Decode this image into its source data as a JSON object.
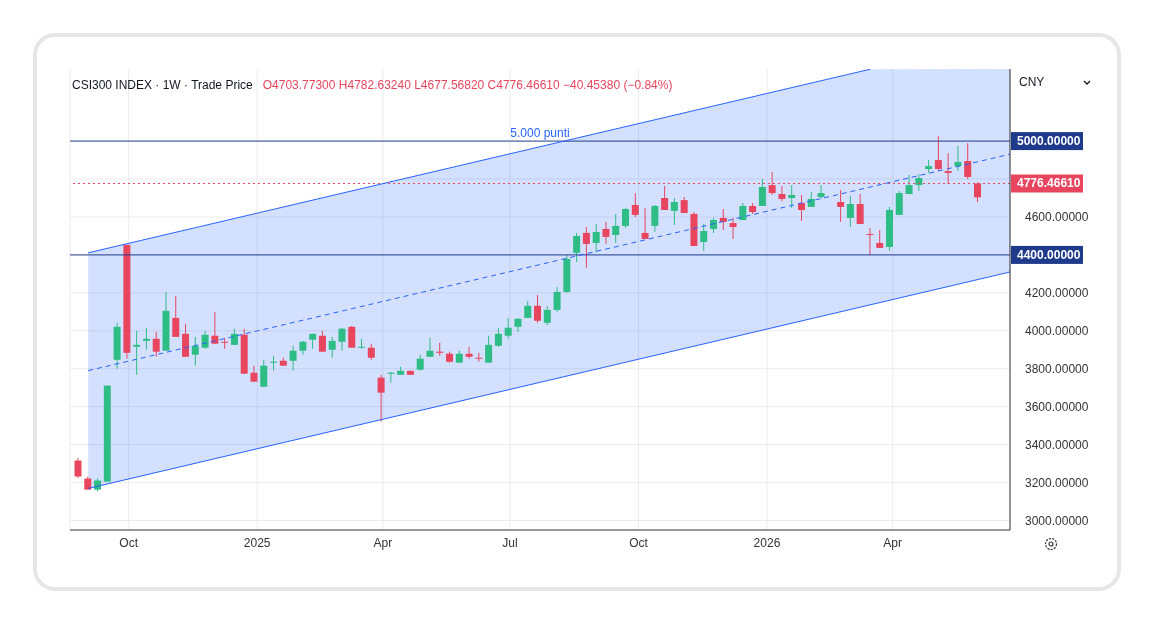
{
  "chart_data": {
    "type": "candlestick",
    "title": "CSI300 INDEX · 1W · Trade Price",
    "subtitle": "O4703.77300 H4782.63240 L4677.56820 C4776.46610 −40.45380 (−0.84%)",
    "ylabel": "CNY",
    "x": [
      "2024-08-26",
      "2024-09-02",
      "2024-09-09",
      "2024-09-16",
      "2024-09-23",
      "2024-09-30",
      "2024-10-07",
      "2024-10-14",
      "2024-10-21",
      "2024-10-28",
      "2024-11-04",
      "2024-11-11",
      "2024-11-18",
      "2024-11-25",
      "2024-12-02",
      "2024-12-09",
      "2024-12-16",
      "2024-12-23",
      "2024-12-30",
      "2025-01-06",
      "2025-01-13",
      "2025-01-20",
      "2025-01-27",
      "2025-02-03",
      "2025-02-10",
      "2025-02-17",
      "2025-02-24",
      "2025-03-03",
      "2025-03-10",
      "2025-03-17",
      "2025-03-24",
      "2025-03-31",
      "2025-04-07",
      "2025-04-14",
      "2025-04-21",
      "2025-04-28",
      "2025-05-05",
      "2025-05-12",
      "2025-05-19",
      "2025-05-26",
      "2025-06-02",
      "2025-06-09",
      "2025-06-16",
      "2025-06-23",
      "2025-06-30",
      "2025-07-07",
      "2025-07-14",
      "2025-07-21",
      "2025-07-28",
      "2025-08-04",
      "2025-08-11",
      "2025-08-18",
      "2025-08-25",
      "2025-09-01",
      "2025-09-08",
      "2025-09-15",
      "2025-09-22",
      "2025-09-29",
      "2025-10-06",
      "2025-10-13",
      "2025-10-20",
      "2025-10-27",
      "2025-11-03",
      "2025-11-10",
      "2025-11-17",
      "2025-11-24",
      "2025-12-01",
      "2025-12-08",
      "2025-12-15",
      "2025-12-22",
      "2025-12-29",
      "2026-01-05",
      "2026-01-12",
      "2026-01-19",
      "2026-01-26",
      "2026-02-02",
      "2026-02-09",
      "2026-02-23",
      "2026-03-02",
      "2026-03-09",
      "2026-03-16",
      "2026-03-23",
      "2026-03-30",
      "2026-04-06",
      "2026-04-13",
      "2026-04-20",
      "2026-04-27",
      "2026-05-04",
      "2026-05-11",
      "2026-05-18",
      "2026-05-25",
      "2026-06-01"
    ],
    "ohlc": [
      [
        3316,
        3330,
        3225,
        3232
      ],
      [
        3221,
        3232,
        3163,
        3163
      ],
      [
        3163,
        3221,
        3153,
        3211
      ],
      [
        3205,
        3711,
        3205,
        3711
      ],
      [
        3847,
        4042,
        3800,
        4021
      ],
      [
        4453,
        4453,
        3853,
        3884
      ],
      [
        3916,
        4000,
        3768,
        3926
      ],
      [
        3947,
        4016,
        3900,
        3958
      ],
      [
        3958,
        3995,
        3863,
        3890
      ],
      [
        3895,
        4205,
        3895,
        4105
      ],
      [
        4068,
        4184,
        3968,
        3968
      ],
      [
        3984,
        4037,
        3863,
        3863
      ],
      [
        3874,
        3968,
        3816,
        3921
      ],
      [
        3911,
        4000,
        3905,
        3979
      ],
      [
        3974,
        4100,
        3932,
        3932
      ],
      [
        3942,
        3963,
        3905,
        3937
      ],
      [
        3926,
        4011,
        3926,
        3984
      ],
      [
        3979,
        4011,
        3774,
        3774
      ],
      [
        3779,
        3816,
        3732,
        3732
      ],
      [
        3705,
        3847,
        3705,
        3816
      ],
      [
        3832,
        3868,
        3790,
        3837
      ],
      [
        3842,
        3858,
        3816,
        3816
      ],
      [
        3842,
        3921,
        3790,
        3895
      ],
      [
        3895,
        3947,
        3874,
        3942
      ],
      [
        3953,
        3984,
        3905,
        3984
      ],
      [
        3974,
        4000,
        3890,
        3890
      ],
      [
        3900,
        3968,
        3858,
        3947
      ],
      [
        3942,
        4016,
        3895,
        4011
      ],
      [
        4021,
        4026,
        3911,
        3911
      ],
      [
        3911,
        3958,
        3905,
        3916
      ],
      [
        3911,
        3932,
        3847,
        3858
      ],
      [
        3753,
        3768,
        3521,
        3674
      ],
      [
        3774,
        3784,
        3726,
        3779
      ],
      [
        3768,
        3810,
        3768,
        3789
      ],
      [
        3789,
        3789,
        3768,
        3768
      ],
      [
        3795,
        3874,
        3789,
        3853
      ],
      [
        3863,
        3963,
        3863,
        3895
      ],
      [
        3890,
        3937,
        3868,
        3884
      ],
      [
        3879,
        3890,
        3832,
        3837
      ],
      [
        3832,
        3895,
        3832,
        3879
      ],
      [
        3879,
        3916,
        3853,
        3863
      ],
      [
        3858,
        3884,
        3837,
        3853
      ],
      [
        3832,
        3974,
        3832,
        3926
      ],
      [
        3921,
        4016,
        3916,
        3984
      ],
      [
        3974,
        4068,
        3958,
        4016
      ],
      [
        4021,
        4068,
        3995,
        4063
      ],
      [
        4068,
        4158,
        4068,
        4132
      ],
      [
        4132,
        4189,
        4042,
        4053
      ],
      [
        4042,
        4130,
        4030,
        4110
      ],
      [
        4110,
        4230,
        4100,
        4205
      ],
      [
        4205,
        4400,
        4200,
        4379
      ],
      [
        4411,
        4516,
        4363,
        4500
      ],
      [
        4516,
        4547,
        4332,
        4458
      ],
      [
        4463,
        4563,
        4416,
        4521
      ],
      [
        4537,
        4574,
        4458,
        4495
      ],
      [
        4505,
        4616,
        4463,
        4553
      ],
      [
        4553,
        4647,
        4542,
        4642
      ],
      [
        4663,
        4726,
        4600,
        4611
      ],
      [
        4516,
        4647,
        4484,
        4484
      ],
      [
        4553,
        4663,
        4521,
        4658
      ],
      [
        4700,
        4763,
        4637,
        4637
      ],
      [
        4632,
        4700,
        4558,
        4679
      ],
      [
        4689,
        4705,
        4621,
        4621
      ],
      [
        4616,
        4626,
        4447,
        4447
      ],
      [
        4468,
        4563,
        4421,
        4526
      ],
      [
        4537,
        4595,
        4516,
        4584
      ],
      [
        4595,
        4642,
        4532,
        4574
      ],
      [
        4568,
        4595,
        4484,
        4547
      ],
      [
        4584,
        4674,
        4584,
        4658
      ],
      [
        4658,
        4674,
        4616,
        4626
      ],
      [
        4658,
        4800,
        4658,
        4758
      ],
      [
        4768,
        4837,
        4716,
        4726
      ],
      [
        4721,
        4763,
        4684,
        4695
      ],
      [
        4700,
        4768,
        4647,
        4716
      ],
      [
        4674,
        4716,
        4579,
        4637
      ],
      [
        4653,
        4732,
        4653,
        4695
      ],
      [
        4705,
        4768,
        4695,
        4726
      ],
      [
        4679,
        4742,
        4574,
        4653
      ],
      [
        4595,
        4711,
        4547,
        4668
      ],
      [
        4668,
        4721,
        4563,
        4563
      ],
      [
        4510,
        4542,
        4400,
        4505
      ],
      [
        4463,
        4532,
        4437,
        4437
      ],
      [
        4442,
        4653,
        4421,
        4637
      ],
      [
        4611,
        4737,
        4611,
        4726
      ],
      [
        4721,
        4821,
        4721,
        4768
      ],
      [
        4768,
        4826,
        4737,
        4805
      ],
      [
        4853,
        4900,
        4832,
        4868
      ],
      [
        4900,
        5026,
        4842,
        4853
      ],
      [
        4842,
        4937,
        4774,
        4832
      ],
      [
        4868,
        4974,
        4842,
        4890
      ],
      [
        4895,
        4989,
        4800,
        4811
      ],
      [
        4776.4661,
        4782.6324,
        4677.5682,
        4703.773
      ]
    ],
    "colors": [
      "#e8455e",
      "#e8455e",
      "#2ebd85",
      "#2ebd85",
      "#2ebd85",
      "#e8455e",
      "#2ebd85",
      "#2ebd85",
      "#e8455e",
      "#2ebd85",
      "#e8455e",
      "#e8455e",
      "#2ebd85",
      "#2ebd85",
      "#e8455e",
      "#e8455e",
      "#2ebd85",
      "#e8455e",
      "#e8455e",
      "#2ebd85",
      "#2ebd85",
      "#e8455e",
      "#2ebd85",
      "#2ebd85",
      "#2ebd85",
      "#e8455e",
      "#2ebd85",
      "#2ebd85",
      "#e8455e",
      "#2ebd85",
      "#e8455e",
      "#e8455e",
      "#2ebd85",
      "#2ebd85",
      "#e8455e",
      "#2ebd85",
      "#2ebd85",
      "#e8455e",
      "#e8455e",
      "#2ebd85",
      "#e8455e",
      "#e8455e",
      "#2ebd85",
      "#2ebd85",
      "#2ebd85",
      "#2ebd85",
      "#2ebd85",
      "#e8455e",
      "#2ebd85",
      "#2ebd85",
      "#2ebd85",
      "#2ebd85",
      "#e8455e",
      "#2ebd85",
      "#e8455e",
      "#2ebd85",
      "#2ebd85",
      "#e8455e",
      "#e8455e",
      "#2ebd85",
      "#e8455e",
      "#2ebd85",
      "#e8455e",
      "#e8455e",
      "#2ebd85",
      "#2ebd85",
      "#e8455e",
      "#e8455e",
      "#2ebd85",
      "#e8455e",
      "#2ebd85",
      "#e8455e",
      "#e8455e",
      "#2ebd85",
      "#e8455e",
      "#2ebd85",
      "#2ebd85",
      "#e8455e",
      "#2ebd85",
      "#e8455e",
      "#e8455e",
      "#e8455e",
      "#2ebd85",
      "#2ebd85",
      "#2ebd85",
      "#2ebd85",
      "#2ebd85",
      "#e8455e",
      "#e8455e",
      "#2ebd85",
      "#e8455e",
      "#e8455e"
    ],
    "series": [
      {
        "type": "line",
        "x": [
          "2024-09-02",
          "2026-03-16"
        ],
        "values": [
          4411,
          5379
        ],
        "color": "#2962ff",
        "line_style": "solid"
      },
      {
        "type": "line",
        "x": [
          "2024-09-02",
          "2026-03-16",
          "2026-06-24"
        ],
        "values": [
          3790,
          4758,
          4931
        ],
        "lower": [
          3169,
          4137,
          4310
        ],
        "upper": [
          4411,
          5379,
          5380
        ],
        "color": "#2962ff",
        "line_style": "dashed"
      },
      {
        "type": "line",
        "x": [
          "2024-09-02",
          "2026-06-24"
        ],
        "values": [
          3169,
          4310
        ],
        "color": "#2962ff",
        "line_style": "solid"
      }
    ],
    "xlim": [
      "2024-08-20",
      "2026-06-24"
    ],
    "xticks": [
      {
        "value": "2024-10-01",
        "label": "Oct"
      },
      {
        "value": "2025-01-01",
        "label": "2025"
      },
      {
        "value": "2025-04-01",
        "label": "Apr"
      },
      {
        "value": "2025-07-01",
        "label": "Jul"
      },
      {
        "value": "2025-10-01",
        "label": "Oct"
      },
      {
        "value": "2026-01-01",
        "label": "2026"
      },
      {
        "value": "2026-04-01",
        "label": "Apr"
      }
    ],
    "ylim": [
      2950,
      5380
    ],
    "yticks": [
      {
        "value": 3000,
        "label": "3000.00000"
      },
      {
        "value": 3200,
        "label": "3200.00000"
      },
      {
        "value": 3400,
        "label": "3400.00000"
      },
      {
        "value": 3600,
        "label": "3600.00000"
      },
      {
        "value": 3800,
        "label": "3800.00000"
      },
      {
        "value": 4000,
        "label": "4000.00000"
      },
      {
        "value": 4200,
        "label": "4200.00000"
      },
      {
        "value": 4600,
        "label": "4600.00000"
      },
      {
        "value": 4800,
        "label": null
      }
    ],
    "annotations": [
      {
        "text": "5.000 punti",
        "y": 5000
      }
    ],
    "ref_lines": [
      {
        "axis": "y",
        "value": 5000,
        "label": "5000.00000",
        "color": "#1e3a8a"
      },
      {
        "axis": "y",
        "value": 4400,
        "label": "4400.00000",
        "color": "#1e3a8a"
      },
      {
        "axis": "y",
        "value": 4776.4661,
        "label": "4776.46610",
        "color": "#e8455e",
        "line_style": "dotted"
      }
    ],
    "grid": true
  }
}
